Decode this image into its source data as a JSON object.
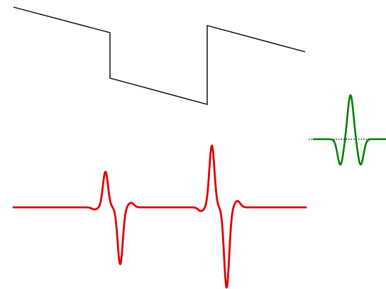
{
  "diagram": {
    "description_free": true,
    "signal": {
      "color": "#000000"
    },
    "response": {
      "color": "#e00000"
    },
    "kernel": {
      "color": "#008000",
      "baseline_color": "#000000"
    }
  }
}
